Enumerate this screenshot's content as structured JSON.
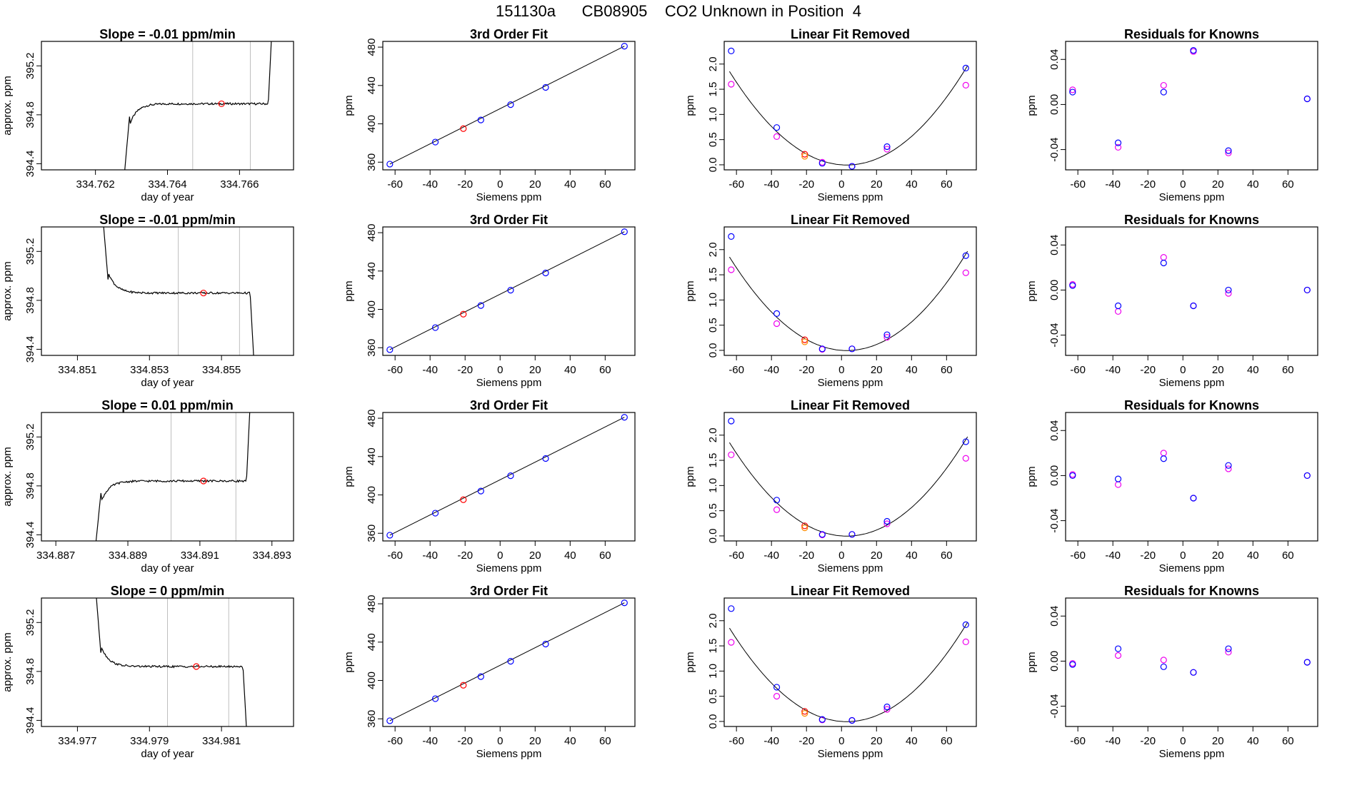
{
  "page_title": "151130a      CB08905    CO2 Unknown in Position  4",
  "colors": {
    "trace": "#000000",
    "gridline": "#bebebe",
    "unknown_point": "#ff0000",
    "known_point": "#0000ff",
    "alt_point": "#ee00ee",
    "alt_unknown_point": "#ff8c00"
  },
  "chart_data": [
    {
      "type": "line",
      "row": 1,
      "panel": "timeseries",
      "title": "Slope =  -0.01  ppm/min",
      "xlabel": "day of year",
      "ylabel": "approx. ppm",
      "xlim": [
        334.7605,
        334.7675
      ],
      "ylim": [
        394.35,
        395.4
      ],
      "xticks": [
        334.762,
        334.764,
        334.766
      ],
      "xtick_labels": [
        "334.762",
        "334.764",
        "334.766"
      ],
      "yticks": [
        394.4,
        394.8,
        395.2
      ],
      "ytick_labels": [
        "394.4",
        "394.8",
        "395.2"
      ],
      "vlines": [
        334.7647,
        334.7663
      ],
      "profile": "rise",
      "trace": {
        "start": 334.7628,
        "end": 334.7669,
        "level": 394.89,
        "from": 394.3,
        "to": 395.5
      },
      "unknown_point": {
        "x": 334.7655,
        "y": 394.89
      }
    },
    {
      "type": "line",
      "row": 1,
      "panel": "fit",
      "title": "3rd Order Fit",
      "xlabel": "Siemens ppm",
      "ylabel": "ppm",
      "xlim": [
        -67,
        77
      ],
      "ylim": [
        352,
        486
      ],
      "xticks": [
        -60,
        -40,
        -20,
        0,
        20,
        40,
        60
      ],
      "xtick_labels": [
        "-60",
        "-40",
        "-20",
        "0",
        "20",
        "40",
        "60"
      ],
      "yticks": [
        360,
        400,
        440,
        480
      ],
      "ytick_labels": [
        "360",
        "400",
        "440",
        "480"
      ],
      "line": {
        "x": [
          -63,
          71
        ],
        "y": [
          358,
          481
        ]
      },
      "known_points": {
        "x": [
          -63,
          -37,
          -11,
          6,
          26,
          71
        ],
        "y": [
          358,
          381,
          404,
          420,
          438,
          481
        ]
      },
      "unknown_point": {
        "x": -21,
        "y": 395
      }
    },
    {
      "type": "scatter",
      "row": 1,
      "panel": "linear_removed",
      "title": "Linear Fit Removed",
      "xlabel": "Siemens ppm",
      "ylabel": "ppm",
      "xlim": [
        -67,
        77
      ],
      "ylim": [
        -0.1,
        2.45
      ],
      "xticks": [
        -60,
        -40,
        -20,
        0,
        20,
        40,
        60
      ],
      "xtick_labels": [
        "-60",
        "-40",
        "-20",
        "0",
        "20",
        "40",
        "60"
      ],
      "yticks": [
        0.0,
        0.5,
        1.0,
        1.5,
        2.0
      ],
      "ytick_labels": [
        "0.0",
        "0.5",
        "1.0",
        "1.5",
        "2.0"
      ],
      "curve": {
        "a": 0.000414,
        "b": -0.00247,
        "c": 0.0
      },
      "known_points": {
        "x": [
          -63,
          -37,
          -11,
          6,
          26,
          71
        ],
        "y": [
          2.26,
          0.74,
          0.03,
          -0.03,
          0.36,
          1.92
        ]
      },
      "alt_points": {
        "x": [
          -63,
          -37,
          -11,
          6,
          26,
          71
        ],
        "y": [
          1.6,
          0.56,
          0.05,
          -0.03,
          0.31,
          1.58
        ]
      },
      "unknown_points": {
        "x": [
          -21,
          -21
        ],
        "y": [
          0.21,
          0.17
        ]
      }
    },
    {
      "type": "scatter",
      "row": 1,
      "panel": "residuals",
      "title": "Residuals for Knowns",
      "xlabel": "Siemens ppm",
      "ylabel": "ppm",
      "xlim": [
        -67,
        77
      ],
      "ylim": [
        -0.058,
        0.056
      ],
      "xticks": [
        -60,
        -40,
        -20,
        0,
        20,
        40,
        60
      ],
      "xtick_labels": [
        "-60",
        "-40",
        "-20",
        "0",
        "20",
        "40",
        "60"
      ],
      "yticks": [
        -0.04,
        0.0,
        0.04
      ],
      "ytick_labels": [
        "-0.04",
        "0.00",
        "0.04"
      ],
      "known_points": {
        "x": [
          -63,
          -37,
          -11,
          6,
          26,
          71
        ],
        "y": [
          0.011,
          -0.034,
          0.011,
          0.048,
          -0.041,
          0.005
        ]
      },
      "alt_points": {
        "x": [
          -63,
          -37,
          -11,
          6,
          26,
          71
        ],
        "y": [
          0.013,
          -0.038,
          0.017,
          0.047,
          -0.043,
          0.005
        ]
      }
    },
    {
      "type": "line",
      "row": 2,
      "panel": "timeseries",
      "title": "Slope =  -0.01  ppm/min",
      "xlabel": "day of year",
      "ylabel": "approx. ppm",
      "xlim": [
        334.85,
        334.857
      ],
      "ylim": [
        394.35,
        395.4
      ],
      "xticks": [
        334.851,
        334.853,
        334.855
      ],
      "xtick_labels": [
        "334.851",
        "334.853",
        "334.855"
      ],
      "yticks": [
        394.4,
        394.8,
        395.2
      ],
      "ytick_labels": [
        "394.4",
        "394.8",
        "395.2"
      ],
      "vlines": [
        334.8538,
        334.8555
      ],
      "profile": "fall",
      "trace": {
        "start": 334.8517,
        "end": 334.8559,
        "level": 394.86,
        "from": 395.5,
        "to": 394.3
      },
      "unknown_point": {
        "x": 334.8545,
        "y": 394.86
      }
    },
    {
      "type": "line",
      "row": 2,
      "panel": "fit",
      "title": "3rd Order Fit",
      "xlabel": "Siemens ppm",
      "ylabel": "ppm",
      "xlim": [
        -67,
        77
      ],
      "ylim": [
        352,
        486
      ],
      "xticks": [
        -60,
        -40,
        -20,
        0,
        20,
        40,
        60
      ],
      "xtick_labels": [
        "-60",
        "-40",
        "-20",
        "0",
        "20",
        "40",
        "60"
      ],
      "yticks": [
        360,
        400,
        440,
        480
      ],
      "ytick_labels": [
        "360",
        "400",
        "440",
        "480"
      ],
      "line": {
        "x": [
          -63,
          71
        ],
        "y": [
          358,
          481
        ]
      },
      "known_points": {
        "x": [
          -63,
          -37,
          -11,
          6,
          26,
          71
        ],
        "y": [
          358,
          381,
          404,
          420,
          438,
          481
        ]
      },
      "unknown_point": {
        "x": -21,
        "y": 395
      }
    },
    {
      "type": "scatter",
      "row": 2,
      "panel": "linear_removed",
      "title": "Linear Fit Removed",
      "xlabel": "Siemens ppm",
      "ylabel": "ppm",
      "xlim": [
        -67,
        77
      ],
      "ylim": [
        -0.1,
        2.45
      ],
      "xticks": [
        -60,
        -40,
        -20,
        0,
        20,
        40,
        60
      ],
      "xtick_labels": [
        "-60",
        "-40",
        "-20",
        "0",
        "20",
        "40",
        "60"
      ],
      "yticks": [
        0.0,
        0.5,
        1.0,
        1.5,
        2.0
      ],
      "ytick_labels": [
        "0.0",
        "0.5",
        "1.0",
        "1.5",
        "2.0"
      ],
      "curve": {
        "a": 0.000414,
        "b": -0.00247,
        "c": 0.0
      },
      "known_points": {
        "x": [
          -63,
          -37,
          -11,
          6,
          26,
          71
        ],
        "y": [
          2.26,
          0.73,
          0.03,
          0.03,
          0.31,
          1.88
        ]
      },
      "alt_points": {
        "x": [
          -63,
          -37,
          -11,
          6,
          26,
          71
        ],
        "y": [
          1.6,
          0.53,
          0.02,
          0.03,
          0.26,
          1.54
        ]
      },
      "unknown_points": {
        "x": [
          -21,
          -21
        ],
        "y": [
          0.21,
          0.17
        ]
      }
    },
    {
      "type": "scatter",
      "row": 2,
      "panel": "residuals",
      "title": "Residuals for Knowns",
      "xlabel": "Siemens ppm",
      "ylabel": "ppm",
      "xlim": [
        -67,
        77
      ],
      "ylim": [
        -0.058,
        0.056
      ],
      "xticks": [
        -60,
        -40,
        -20,
        0,
        20,
        40,
        60
      ],
      "xtick_labels": [
        "-60",
        "-40",
        "-20",
        "0",
        "20",
        "40",
        "60"
      ],
      "yticks": [
        -0.04,
        0.0,
        0.04
      ],
      "ytick_labels": [
        "-0.04",
        "0.00",
        "0.04"
      ],
      "known_points": {
        "x": [
          -63,
          -37,
          -11,
          6,
          26,
          71
        ],
        "y": [
          0.004,
          -0.014,
          0.024,
          -0.014,
          0.0,
          0.0
        ]
      },
      "alt_points": {
        "x": [
          -63,
          -37,
          -11,
          6,
          26,
          71
        ],
        "y": [
          0.005,
          -0.019,
          0.029,
          -0.014,
          -0.003,
          0.0
        ]
      }
    },
    {
      "type": "line",
      "row": 3,
      "panel": "timeseries",
      "title": "Slope =  0.01  ppm/min",
      "xlabel": "day of year",
      "ylabel": "approx. ppm",
      "xlim": [
        334.8866,
        334.8936
      ],
      "ylim": [
        394.35,
        395.4
      ],
      "xticks": [
        334.887,
        334.889,
        334.891,
        334.893
      ],
      "xtick_labels": [
        "334.887",
        "334.889",
        "334.891",
        "334.893"
      ],
      "yticks": [
        394.4,
        394.8,
        395.2
      ],
      "ytick_labels": [
        "394.4",
        "394.8",
        "395.2"
      ],
      "vlines": [
        334.8902,
        334.892
      ],
      "profile": "rise",
      "trace": {
        "start": 334.8881,
        "end": 334.8924,
        "level": 394.84,
        "from": 394.3,
        "to": 395.5
      },
      "unknown_point": {
        "x": 334.8911,
        "y": 394.84
      }
    },
    {
      "type": "line",
      "row": 3,
      "panel": "fit",
      "title": "3rd Order Fit",
      "xlabel": "Siemens ppm",
      "ylabel": "ppm",
      "xlim": [
        -67,
        77
      ],
      "ylim": [
        352,
        486
      ],
      "xticks": [
        -60,
        -40,
        -20,
        0,
        20,
        40,
        60
      ],
      "xtick_labels": [
        "-60",
        "-40",
        "-20",
        "0",
        "20",
        "40",
        "60"
      ],
      "yticks": [
        360,
        400,
        440,
        480
      ],
      "ytick_labels": [
        "360",
        "400",
        "440",
        "480"
      ],
      "line": {
        "x": [
          -63,
          71
        ],
        "y": [
          358,
          481
        ]
      },
      "known_points": {
        "x": [
          -63,
          -37,
          -11,
          6,
          26,
          71
        ],
        "y": [
          358,
          381,
          404,
          420,
          438,
          481
        ]
      },
      "unknown_point": {
        "x": -21,
        "y": 395
      }
    },
    {
      "type": "scatter",
      "row": 3,
      "panel": "linear_removed",
      "title": "Linear Fit Removed",
      "xlabel": "Siemens ppm",
      "ylabel": "ppm",
      "xlim": [
        -67,
        77
      ],
      "ylim": [
        -0.1,
        2.45
      ],
      "xticks": [
        -60,
        -40,
        -20,
        0,
        20,
        40,
        60
      ],
      "xtick_labels": [
        "-60",
        "-40",
        "-20",
        "0",
        "20",
        "40",
        "60"
      ],
      "yticks": [
        0.0,
        0.5,
        1.0,
        1.5,
        2.0
      ],
      "ytick_labels": [
        "0.0",
        "0.5",
        "1.0",
        "1.5",
        "2.0"
      ],
      "curve": {
        "a": 0.000414,
        "b": -0.00247,
        "c": 0.0
      },
      "known_points": {
        "x": [
          -63,
          -37,
          -11,
          6,
          26,
          71
        ],
        "y": [
          2.28,
          0.71,
          0.03,
          0.03,
          0.29,
          1.87
        ]
      },
      "alt_points": {
        "x": [
          -63,
          -37,
          -11,
          6,
          26,
          71
        ],
        "y": [
          1.61,
          0.52,
          0.02,
          0.03,
          0.24,
          1.54
        ]
      },
      "unknown_points": {
        "x": [
          -21,
          -21
        ],
        "y": [
          0.2,
          0.16
        ]
      }
    },
    {
      "type": "scatter",
      "row": 3,
      "panel": "residuals",
      "title": "Residuals for Knowns",
      "xlabel": "Siemens ppm",
      "ylabel": "ppm",
      "xlim": [
        -67,
        77
      ],
      "ylim": [
        -0.058,
        0.056
      ],
      "xticks": [
        -60,
        -40,
        -20,
        0,
        20,
        40,
        60
      ],
      "xtick_labels": [
        "-60",
        "-40",
        "-20",
        "0",
        "20",
        "40",
        "60"
      ],
      "yticks": [
        -0.04,
        0.0,
        0.04
      ],
      "ytick_labels": [
        "-0.04",
        "0.00",
        "0.04"
      ],
      "known_points": {
        "x": [
          -63,
          -37,
          -11,
          6,
          26,
          71
        ],
        "y": [
          0.0,
          -0.003,
          0.015,
          -0.02,
          0.009,
          0.0
        ]
      },
      "alt_points": {
        "x": [
          -63,
          -37,
          -11,
          6,
          26,
          71
        ],
        "y": [
          0.001,
          -0.008,
          0.02,
          -0.02,
          0.006,
          0.0
        ]
      }
    },
    {
      "type": "line",
      "row": 4,
      "panel": "timeseries",
      "title": "Slope =  0  ppm/min",
      "xlabel": "day of year",
      "ylabel": "approx. ppm",
      "xlim": [
        334.976,
        334.983
      ],
      "ylim": [
        394.35,
        395.4
      ],
      "xticks": [
        334.977,
        334.979,
        334.981
      ],
      "xtick_labels": [
        "334.977",
        "334.979",
        "334.981"
      ],
      "yticks": [
        394.4,
        394.8,
        395.2
      ],
      "ytick_labels": [
        "394.4",
        "394.8",
        "395.2"
      ],
      "vlines": [
        334.9795,
        334.9812
      ],
      "profile": "fall",
      "trace": {
        "start": 334.9775,
        "end": 334.9817,
        "level": 394.84,
        "from": 395.5,
        "to": 394.3
      },
      "unknown_point": {
        "x": 334.9803,
        "y": 394.84
      }
    },
    {
      "type": "line",
      "row": 4,
      "panel": "fit",
      "title": "3rd Order Fit",
      "xlabel": "Siemens ppm",
      "ylabel": "ppm",
      "xlim": [
        -67,
        77
      ],
      "ylim": [
        352,
        486
      ],
      "xticks": [
        -60,
        -40,
        -20,
        0,
        20,
        40,
        60
      ],
      "xtick_labels": [
        "-60",
        "-40",
        "-20",
        "0",
        "20",
        "40",
        "60"
      ],
      "yticks": [
        360,
        400,
        440,
        480
      ],
      "ytick_labels": [
        "360",
        "400",
        "440",
        "480"
      ],
      "line": {
        "x": [
          -63,
          71
        ],
        "y": [
          358,
          481
        ]
      },
      "known_points": {
        "x": [
          -63,
          -37,
          -11,
          6,
          26,
          71
        ],
        "y": [
          358,
          381,
          404,
          420,
          438,
          481
        ]
      },
      "unknown_point": {
        "x": -21,
        "y": 395
      }
    },
    {
      "type": "scatter",
      "row": 4,
      "panel": "linear_removed",
      "title": "Linear Fit Removed",
      "xlabel": "Siemens ppm",
      "ylabel": "ppm",
      "xlim": [
        -67,
        77
      ],
      "ylim": [
        -0.1,
        2.45
      ],
      "xticks": [
        -60,
        -40,
        -20,
        0,
        20,
        40,
        60
      ],
      "xtick_labels": [
        "-60",
        "-40",
        "-20",
        "0",
        "20",
        "40",
        "60"
      ],
      "yticks": [
        0.0,
        0.5,
        1.0,
        1.5,
        2.0
      ],
      "ytick_labels": [
        "0.0",
        "0.5",
        "1.0",
        "1.5",
        "2.0"
      ],
      "curve": {
        "a": 0.000414,
        "b": -0.00247,
        "c": 0.0
      },
      "known_points": {
        "x": [
          -63,
          -37,
          -11,
          6,
          26,
          71
        ],
        "y": [
          2.24,
          0.68,
          0.04,
          0.02,
          0.29,
          1.92
        ]
      },
      "alt_points": {
        "x": [
          -63,
          -37,
          -11,
          6,
          26,
          71
        ],
        "y": [
          1.57,
          0.5,
          0.03,
          0.02,
          0.24,
          1.58
        ]
      },
      "unknown_points": {
        "x": [
          -21,
          -21
        ],
        "y": [
          0.2,
          0.16
        ]
      }
    },
    {
      "type": "scatter",
      "row": 4,
      "panel": "residuals",
      "title": "Residuals for Knowns",
      "xlabel": "Siemens ppm",
      "ylabel": "ppm",
      "xlim": [
        -67,
        77
      ],
      "ylim": [
        -0.058,
        0.056
      ],
      "xticks": [
        -60,
        -40,
        -20,
        0,
        20,
        40,
        60
      ],
      "xtick_labels": [
        "-60",
        "-40",
        "-20",
        "0",
        "20",
        "40",
        "60"
      ],
      "yticks": [
        -0.04,
        0.0,
        0.04
      ],
      "ytick_labels": [
        "-0.04",
        "0.00",
        "0.04"
      ],
      "known_points": {
        "x": [
          -63,
          -37,
          -11,
          6,
          26,
          71
        ],
        "y": [
          -0.003,
          0.011,
          -0.005,
          -0.01,
          0.011,
          -0.001
        ]
      },
      "alt_points": {
        "x": [
          -63,
          -37,
          -11,
          6,
          26,
          71
        ],
        "y": [
          -0.002,
          0.005,
          0.001,
          -0.01,
          0.008,
          -0.001
        ]
      }
    }
  ]
}
